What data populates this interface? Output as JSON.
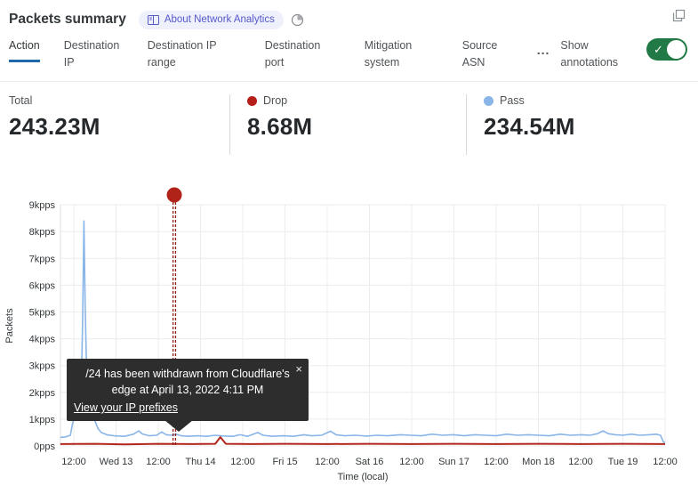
{
  "header": {
    "title": "Packets summary",
    "badge_label": "About Network Analytics"
  },
  "tabs": {
    "items": [
      {
        "label": "Action",
        "active": true
      },
      {
        "label": "Destination IP",
        "active": false
      },
      {
        "label": "Destination IP range",
        "active": false
      },
      {
        "label": "Destination port",
        "active": false
      },
      {
        "label": "Mitigation system",
        "active": false
      },
      {
        "label": "Source ASN",
        "active": false
      }
    ],
    "more_label": "...",
    "show_annotations_label": "Show annotations",
    "annotations_toggle_on": true
  },
  "stats": [
    {
      "label": "Total",
      "value": "243.23M"
    },
    {
      "label": "Drop",
      "value": "8.68M",
      "dot_color": "#b41f1a"
    },
    {
      "label": "Pass",
      "value": "234.54M",
      "dot_color": "#8ab5e8"
    }
  ],
  "tooltip": {
    "message": "/24 has been withdrawn from Cloudflare's edge at April 13, 2022 4:11 PM",
    "link_label": "View your IP prefixes",
    "close_label": "×"
  },
  "colors": {
    "accent_blue": "#2168a8",
    "toggle_green": "#217a46",
    "badge_purple": "#5558c9",
    "pass_blue": "#8ab5e8",
    "drop_red": "#b2271c",
    "annotation_red": "#8f1f14",
    "grid_gray": "#ececec"
  },
  "chart_data": {
    "type": "line",
    "title": "",
    "xlabel": "Time (local)",
    "ylabel": "Packets",
    "y_unit": "kpps",
    "ylim": [
      0,
      9
    ],
    "grid": true,
    "y_tick_labels": [
      "0pps",
      "1kpps",
      "2kpps",
      "3kpps",
      "4kpps",
      "5kpps",
      "6kpps",
      "7kpps",
      "8kpps",
      "9kpps"
    ],
    "x_tick_labels": [
      "12:00",
      "Wed 13",
      "12:00",
      "Thu 14",
      "12:00",
      "Fri 15",
      "12:00",
      "Sat 16",
      "12:00",
      "Sun 17",
      "12:00",
      "Mon 18",
      "12:00",
      "Tue 19",
      "12:00"
    ],
    "series": [
      {
        "name": "Pass",
        "color": "#8ab5e8",
        "width": 1.6,
        "points": [
          [
            -0.32,
            0.32
          ],
          [
            -0.19,
            0.34
          ],
          [
            -0.08,
            0.4
          ],
          [
            -0.04,
            0.75
          ],
          [
            0,
            1.05
          ],
          [
            0.04,
            0.95
          ],
          [
            0.11,
            1.0
          ],
          [
            0.17,
            1.6
          ],
          [
            0.21,
            4.8
          ],
          [
            0.24,
            8.4
          ],
          [
            0.27,
            5.2
          ],
          [
            0.32,
            1.6
          ],
          [
            0.38,
            1.25
          ],
          [
            0.44,
            1.15
          ],
          [
            0.51,
            0.9
          ],
          [
            0.57,
            0.65
          ],
          [
            0.65,
            0.5
          ],
          [
            0.78,
            0.42
          ],
          [
            0.95,
            0.38
          ],
          [
            1.2,
            0.36
          ],
          [
            1.41,
            0.44
          ],
          [
            1.54,
            0.56
          ],
          [
            1.62,
            0.45
          ],
          [
            1.79,
            0.38
          ],
          [
            1.96,
            0.4
          ],
          [
            2.08,
            0.52
          ],
          [
            2.19,
            0.42
          ],
          [
            2.32,
            0.4
          ],
          [
            2.42,
            0.44
          ],
          [
            2.55,
            0.38
          ],
          [
            2.72,
            0.36
          ],
          [
            2.93,
            0.38
          ],
          [
            3.14,
            0.36
          ],
          [
            3.35,
            0.4
          ],
          [
            3.56,
            0.37
          ],
          [
            3.77,
            0.36
          ],
          [
            3.94,
            0.42
          ],
          [
            4.11,
            0.36
          ],
          [
            4.36,
            0.5
          ],
          [
            4.48,
            0.4
          ],
          [
            4.69,
            0.36
          ],
          [
            4.95,
            0.38
          ],
          [
            5.2,
            0.36
          ],
          [
            5.45,
            0.42
          ],
          [
            5.62,
            0.38
          ],
          [
            5.87,
            0.4
          ],
          [
            6.08,
            0.55
          ],
          [
            6.21,
            0.42
          ],
          [
            6.42,
            0.38
          ],
          [
            6.67,
            0.4
          ],
          [
            6.93,
            0.37
          ],
          [
            7.18,
            0.4
          ],
          [
            7.43,
            0.38
          ],
          [
            7.73,
            0.42
          ],
          [
            7.98,
            0.4
          ],
          [
            8.23,
            0.38
          ],
          [
            8.48,
            0.44
          ],
          [
            8.74,
            0.4
          ],
          [
            8.99,
            0.42
          ],
          [
            9.24,
            0.38
          ],
          [
            9.49,
            0.42
          ],
          [
            9.75,
            0.4
          ],
          [
            10.0,
            0.38
          ],
          [
            10.25,
            0.44
          ],
          [
            10.51,
            0.4
          ],
          [
            10.76,
            0.42
          ],
          [
            11.01,
            0.4
          ],
          [
            11.26,
            0.38
          ],
          [
            11.52,
            0.44
          ],
          [
            11.77,
            0.4
          ],
          [
            12.02,
            0.42
          ],
          [
            12.23,
            0.4
          ],
          [
            12.4,
            0.46
          ],
          [
            12.53,
            0.56
          ],
          [
            12.65,
            0.46
          ],
          [
            12.82,
            0.42
          ],
          [
            12.99,
            0.4
          ],
          [
            13.2,
            0.44
          ],
          [
            13.41,
            0.4
          ],
          [
            13.62,
            0.42
          ],
          [
            13.79,
            0.44
          ],
          [
            13.89,
            0.4
          ],
          [
            13.96,
            0.15
          ],
          [
            14.0,
            0.12
          ]
        ]
      },
      {
        "name": "Drop",
        "color": "#b2271c",
        "width": 2.0,
        "points": [
          [
            -0.32,
            0.07
          ],
          [
            0.5,
            0.08
          ],
          [
            1.2,
            0.06
          ],
          [
            2.0,
            0.08
          ],
          [
            2.8,
            0.07
          ],
          [
            3.35,
            0.08
          ],
          [
            3.47,
            0.33
          ],
          [
            3.6,
            0.08
          ],
          [
            4.2,
            0.07
          ],
          [
            5.0,
            0.08
          ],
          [
            6.0,
            0.07
          ],
          [
            7.0,
            0.08
          ],
          [
            8.0,
            0.07
          ],
          [
            9.0,
            0.08
          ],
          [
            10.0,
            0.07
          ],
          [
            11.0,
            0.08
          ],
          [
            12.0,
            0.07
          ],
          [
            13.0,
            0.08
          ],
          [
            14.0,
            0.07
          ]
        ]
      }
    ],
    "annotation": {
      "t": 2.38,
      "time": "April 13, 2022 4:11 PM",
      "label": "/24 has been withdrawn from Cloudflare's edge at April 13, 2022 4:11 PM",
      "color": "#8f1f14",
      "marker_color": "#b02318"
    }
  }
}
